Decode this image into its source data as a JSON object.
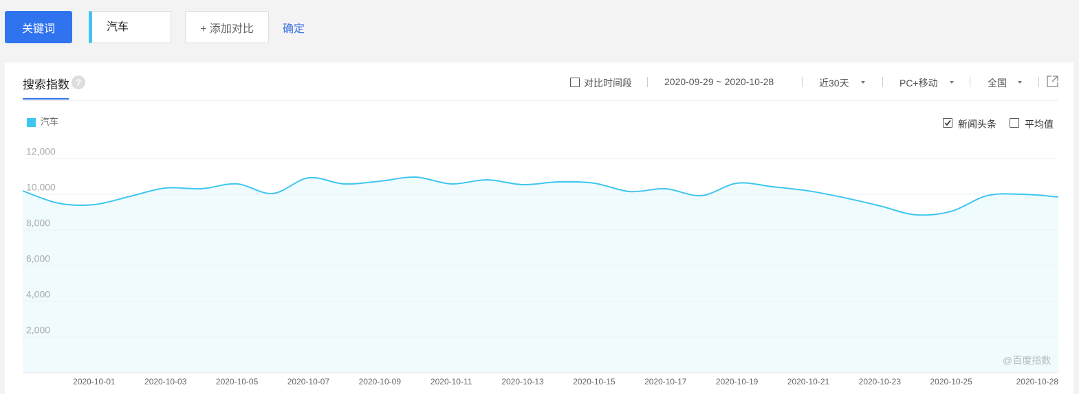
{
  "top_bar": {
    "keyword_button": "关键词",
    "keyword_input": "汽车",
    "add_compare": "+ 添加对比",
    "confirm": "确定"
  },
  "panel": {
    "tab": "搜索指数",
    "help": "?",
    "controls": {
      "compare_period": {
        "label": "对比时间段",
        "checked": false
      },
      "date_range": "2020-09-29 ~ 2020-10-28",
      "period": "近30天",
      "device": "PC+移动",
      "region": "全国"
    },
    "options": [
      {
        "label": "新闻头条",
        "checked": true
      },
      {
        "label": "平均值",
        "checked": false
      }
    ],
    "watermark": "@百度指数"
  },
  "chart_data": {
    "type": "line",
    "fill": true,
    "x": [
      null,
      null,
      "2020-10-01",
      null,
      "2020-10-03",
      null,
      "2020-10-05",
      null,
      "2020-10-07",
      null,
      "2020-10-09",
      null,
      "2020-10-11",
      null,
      "2020-10-13",
      null,
      "2020-10-15",
      null,
      "2020-10-17",
      null,
      "2020-10-19",
      null,
      "2020-10-21",
      null,
      "2020-10-23",
      null,
      "2020-10-25",
      null,
      null,
      "2020-10-28"
    ],
    "series": [
      {
        "name": "汽车",
        "color": "#3ec6f0",
        "values": [
          10190,
          9500,
          9420,
          9880,
          10350,
          10310,
          10580,
          10040,
          10920,
          10580,
          10730,
          10960,
          10580,
          10810,
          10540,
          10690,
          10620,
          10150,
          10310,
          9920,
          10620,
          10420,
          10190,
          9810,
          9350,
          8850,
          9040,
          9920,
          10000,
          9850
        ]
      }
    ],
    "ylim": [
      0,
      12000
    ],
    "yticks": [
      {
        "value": 2000,
        "label": "2,000"
      },
      {
        "value": 4000,
        "label": "4,000"
      },
      {
        "value": 6000,
        "label": "6,000"
      },
      {
        "value": 8000,
        "label": "8,000"
      },
      {
        "value": 10000,
        "label": "10,000"
      },
      {
        "value": 12000,
        "label": "12,000"
      }
    ],
    "grid": true
  }
}
